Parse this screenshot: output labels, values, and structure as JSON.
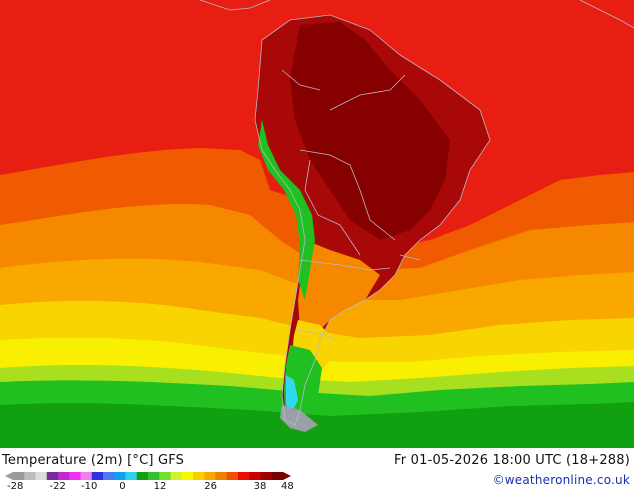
{
  "product": {
    "title": "Temperature (2m) [°C] GFS",
    "datetime": "Fr 01-05-2026 18:00 UTC (18+288)",
    "credit": "©weatheronline.co.uk"
  },
  "legend": {
    "ticks": [
      "-28",
      "-22",
      "-10",
      "0",
      "12",
      "26",
      "38",
      "48"
    ],
    "colors": [
      "#9a9a9a",
      "#bdbdbd",
      "#dcdcdc",
      "#7a2a9a",
      "#c02bd0",
      "#f030f0",
      "#f080f0",
      "#3030e0",
      "#4a7af0",
      "#10a0f0",
      "#30d0f0",
      "#10a010",
      "#30c030",
      "#70e030",
      "#d0f030",
      "#f8f800",
      "#f8d000",
      "#f8a800",
      "#f08000",
      "#f05000",
      "#e81000",
      "#c80000",
      "#a00000",
      "#780000"
    ]
  },
  "map": {
    "region": "South America",
    "colors": {
      "ocean_warm": "#e81e12",
      "ocean_orange": "#f05a00",
      "ocean_lightorange": "#f68800",
      "ocean_amber": "#f9a800",
      "ocean_yellow": "#f8d400",
      "ocean_lightyellow": "#f8f000",
      "ocean_lime": "#a8e020",
      "ocean_green": "#20c020",
      "ocean_darkgreen": "#10a010",
      "land_hot": "#a80808",
      "land_hottest": "#860000",
      "andes_cold": "#30d8f0",
      "ice": "#9aa0a8",
      "border": "#b8b8c8"
    }
  }
}
